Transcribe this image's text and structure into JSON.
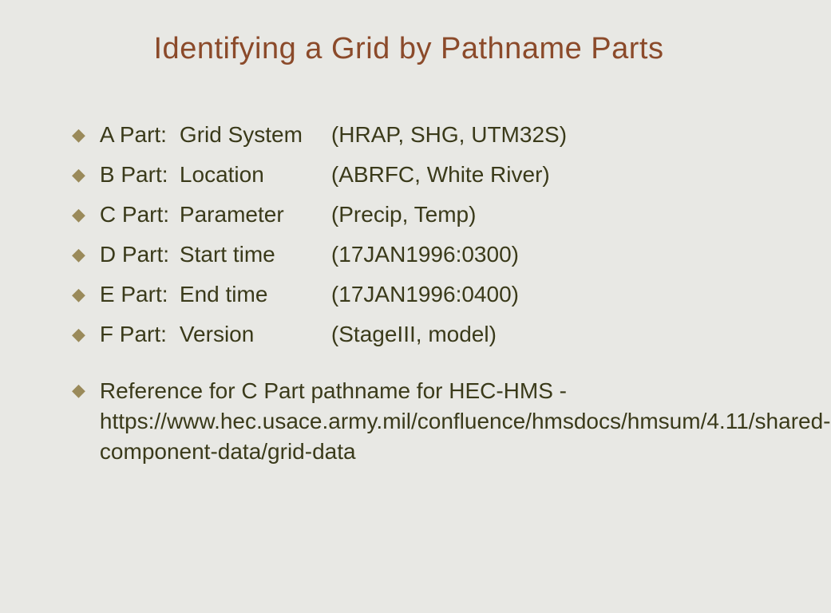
{
  "slide": {
    "title": "Identifying a Grid by Pathname Parts",
    "background_color": "#e8e8e4",
    "title_color": "#8b4a2a",
    "text_color": "#3a3a1a",
    "bullet_color": "#9a8a5a",
    "title_fontsize": 38,
    "body_fontsize": 28,
    "bullet_glyph": "◆",
    "parts": [
      {
        "label": "A Part:",
        "name": "Grid System",
        "example": "(HRAP, SHG, UTM32S)"
      },
      {
        "label": "B Part:",
        "name": "Location",
        "example": "(ABRFC, White River)"
      },
      {
        "label": "C Part:",
        "name": "Parameter",
        "example": "(Precip, Temp)"
      },
      {
        "label": "D Part:",
        "name": "Start time",
        "example": "(17JAN1996:0300)"
      },
      {
        "label": "E Part:",
        "name": "End time",
        "example": "(17JAN1996:0400)"
      },
      {
        "label": "F Part:",
        "name": "Version",
        "example": "(StageIII, model)"
      }
    ],
    "reference": "Reference for C Part pathname for HEC-HMS - https://www.hec.usace.army.mil/confluence/hmsdocs/hmsum/4.11/shared-component-data/grid-data"
  }
}
